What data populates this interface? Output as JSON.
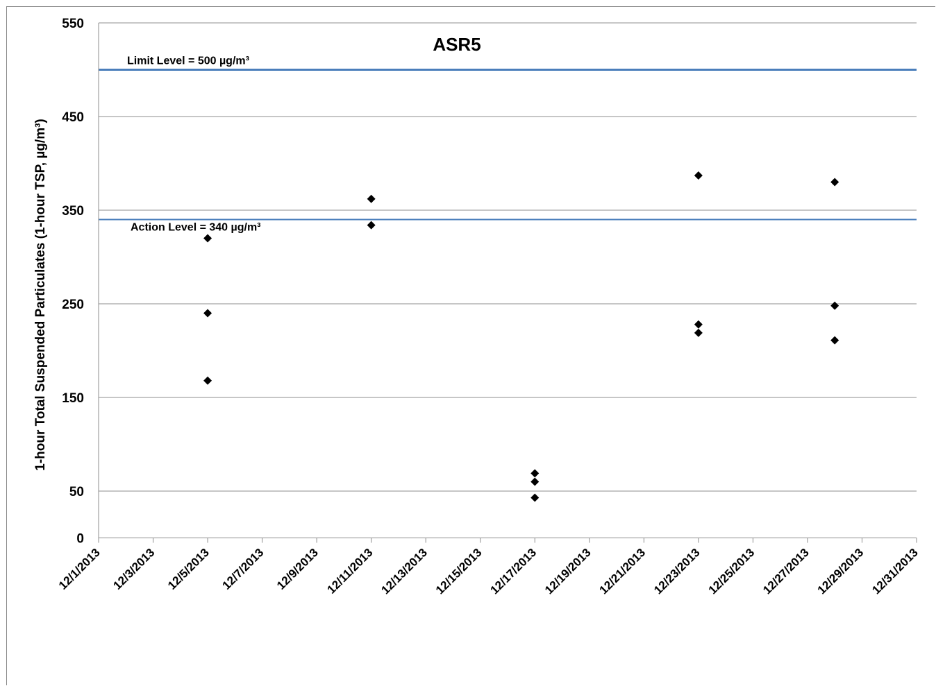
{
  "chart_data": {
    "type": "scatter",
    "title": "ASR5",
    "ylabel": "1-hour Total Suspended Particulates (1-hour TSP, µg/m³)",
    "xlabel": "",
    "ylim": [
      50,
      550
    ],
    "y_ticks": [
      550,
      450,
      350,
      250,
      150,
      50
    ],
    "x_axis_crossing": 0,
    "x_ticks": [
      "12/1/2013",
      "12/3/2013",
      "12/5/2013",
      "12/7/2013",
      "12/9/2013",
      "12/11/2013",
      "12/13/2013",
      "12/15/2013",
      "12/17/2013",
      "12/19/2013",
      "12/21/2013",
      "12/23/2013",
      "12/25/2013",
      "12/27/2013",
      "12/29/2013",
      "12/31/2013"
    ],
    "xlim": [
      "12/1/2013",
      "12/31/2013"
    ],
    "grid": true,
    "reference_lines": [
      {
        "label": "Limit Level = 500 µg/m³",
        "value": 500,
        "color": "#4a7ebb"
      },
      {
        "label": "Action Level = 340 µg/m³",
        "value": 340,
        "color": "#4a7ebb"
      }
    ],
    "marker": "diamond",
    "marker_color": "#000000",
    "points": [
      {
        "x": "12/5/2013",
        "y": 320
      },
      {
        "x": "12/5/2013",
        "y": 240
      },
      {
        "x": "12/5/2013",
        "y": 168
      },
      {
        "x": "12/11/2013",
        "y": 362
      },
      {
        "x": "12/11/2013",
        "y": 334
      },
      {
        "x": "12/17/2013",
        "y": 69
      },
      {
        "x": "12/17/2013",
        "y": 60
      },
      {
        "x": "12/17/2013",
        "y": 43
      },
      {
        "x": "12/23/2013",
        "y": 387
      },
      {
        "x": "12/23/2013",
        "y": 228
      },
      {
        "x": "12/23/2013",
        "y": 219
      },
      {
        "x": "12/28/2013",
        "y": 380
      },
      {
        "x": "12/28/2013",
        "y": 248
      },
      {
        "x": "12/28/2013",
        "y": 211
      }
    ]
  }
}
